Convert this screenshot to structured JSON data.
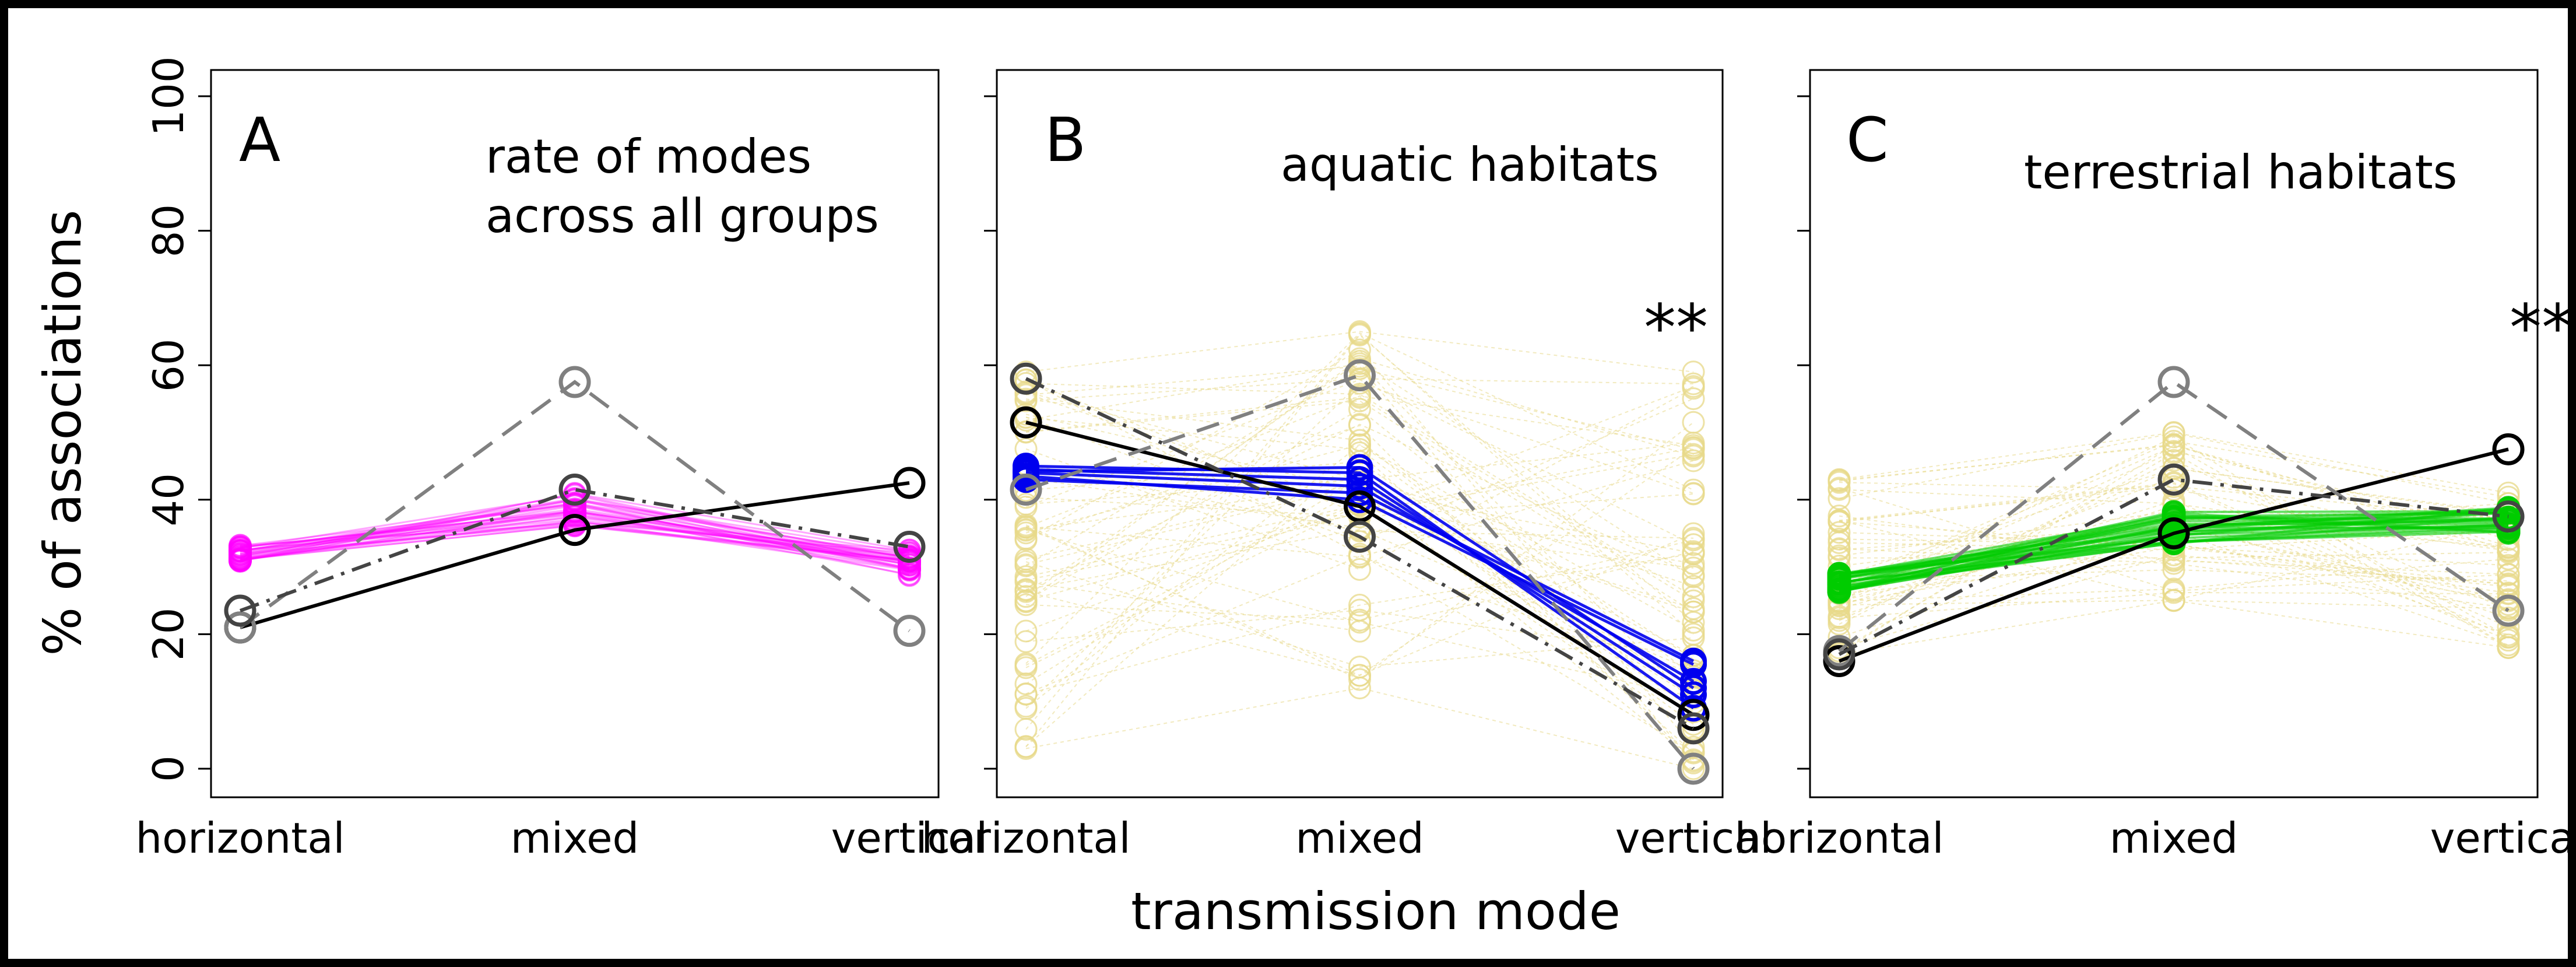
{
  "figure": {
    "ylabel": "% of associations",
    "xlabel": "transmission mode",
    "significance_mark": "**"
  },
  "chart_data": [
    {
      "type": "line",
      "panel_letter": "A",
      "title": "rate of modes across all groups",
      "title_lines": [
        "rate of modes",
        "across all groups"
      ],
      "categories": [
        "horizontal",
        "mixed",
        "vertical"
      ],
      "ylim": [
        0,
        100
      ],
      "yticks": [
        0,
        20,
        40,
        60,
        80,
        100
      ],
      "grid": false,
      "significance": "",
      "band": {
        "color": "#ff00ff",
        "count": 30,
        "start": [
          32,
          38.5,
          30.5
        ],
        "spread": [
          1.2,
          2.5,
          2.0
        ]
      },
      "highlight": {
        "color": "#ff00ff",
        "lines": []
      },
      "reference_lines": [
        {
          "style": "solid",
          "color": "#000000",
          "values": [
            21,
            35.5,
            42.5
          ]
        },
        {
          "style": "dashed",
          "color": "#808080",
          "values": [
            21,
            57.5,
            20.5
          ]
        },
        {
          "style": "dashdot",
          "color": "#444444",
          "values": [
            23.5,
            41.5,
            33
          ]
        }
      ]
    },
    {
      "type": "line",
      "panel_letter": "B",
      "title": "aquatic habitats",
      "title_lines": [
        "aquatic habitats"
      ],
      "categories": [
        "horizontal",
        "mixed",
        "vertical"
      ],
      "ylim": [
        0,
        100
      ],
      "yticks": [
        0,
        20,
        40,
        60,
        80,
        100
      ],
      "grid": false,
      "significance": "**",
      "band": {
        "color": "#e8d98a",
        "count": 60,
        "range": [
          [
            3,
            59
          ],
          [
            12,
            65
          ],
          [
            0,
            59
          ]
        ]
      },
      "highlight": {
        "color": "#0000ee",
        "lines": [
          [
            43.5,
            40,
            15.5
          ],
          [
            44,
            42,
            13
          ],
          [
            44.5,
            43,
            11
          ],
          [
            45,
            44,
            9
          ],
          [
            43,
            41,
            16
          ],
          [
            44.2,
            44.8,
            12
          ]
        ]
      },
      "reference_lines": [
        {
          "style": "solid",
          "color": "#000000",
          "values": [
            51.5,
            39,
            8
          ]
        },
        {
          "style": "dashed",
          "color": "#808080",
          "values": [
            41.5,
            58.5,
            0
          ]
        },
        {
          "style": "dashdot",
          "color": "#444444",
          "values": [
            58,
            34.5,
            6
          ]
        }
      ]
    },
    {
      "type": "line",
      "panel_letter": "C",
      "title": "terrestrial habitats",
      "title_lines": [
        "terrestrial habitats"
      ],
      "categories": [
        "horizontal",
        "mixed",
        "vertical"
      ],
      "ylim": [
        0,
        100
      ],
      "yticks": [
        0,
        20,
        40,
        60,
        80,
        100
      ],
      "grid": false,
      "significance": "**",
      "band": {
        "color": "#e8d98a",
        "count": 45,
        "range": [
          [
            17,
            43
          ],
          [
            25,
            50
          ],
          [
            18,
            41
          ]
        ]
      },
      "highlight": {
        "color": "#00cc00",
        "lines": [],
        "count": 25,
        "start": [
          27.5,
          35.5,
          37
        ],
        "spread": [
          1.5,
          3,
          2
        ]
      },
      "reference_lines": [
        {
          "style": "solid",
          "color": "#000000",
          "values": [
            16,
            35,
            47.5
          ]
        },
        {
          "style": "dashed",
          "color": "#808080",
          "values": [
            17.5,
            57.5,
            23.5
          ]
        },
        {
          "style": "dashdot",
          "color": "#444444",
          "values": [
            17,
            43,
            37.5
          ]
        }
      ]
    }
  ]
}
